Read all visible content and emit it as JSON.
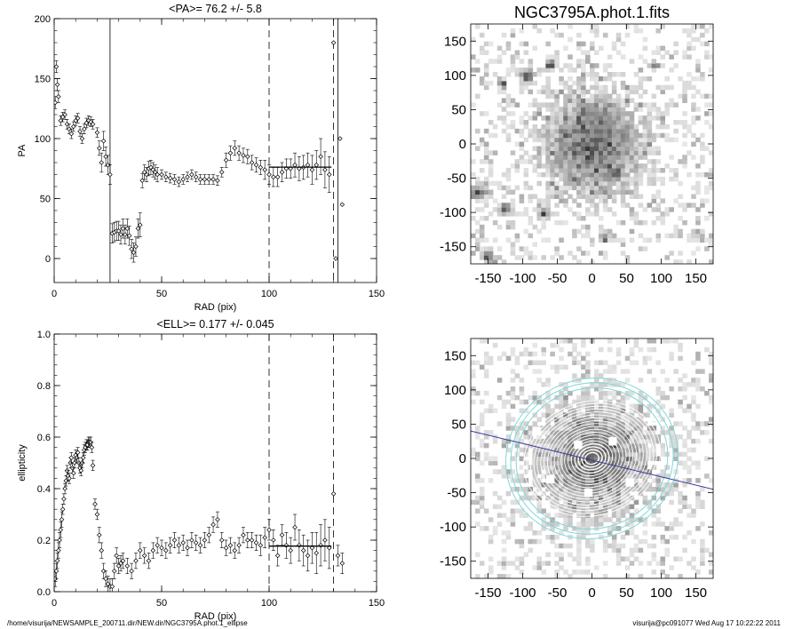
{
  "footer": {
    "left": "/home/visurija/NEWSAMPLE_200711.dir/NEW.dir/NGC3795A.phot.1_ellipse",
    "right": "visurija@pc091077  Wed Aug 17 10:22:22 2011"
  },
  "chart_data": [
    {
      "type": "scatter",
      "title": "<PA>=  76.2 +/-   5.8",
      "xlabel": "RAD (pix)",
      "ylabel": "PA",
      "xlim": [
        0,
        150
      ],
      "ylim": [
        -20,
        200
      ],
      "xticks": [
        0,
        50,
        100,
        150
      ],
      "yticks": [
        0,
        50,
        100,
        150,
        200
      ],
      "vlines_solid": [
        26,
        132
      ],
      "vlines_dashed": [
        100,
        130
      ],
      "mean_line": {
        "x": [
          100,
          129
        ],
        "y": 76.2
      },
      "series": [
        {
          "x": [
            0.5,
            1,
            1.5,
            2,
            3,
            4,
            5,
            6,
            7,
            8,
            9,
            10,
            11,
            12,
            13,
            14,
            15,
            16,
            17,
            18,
            20,
            21,
            22,
            23,
            24,
            25,
            26,
            27,
            28,
            29,
            30,
            31,
            32,
            33,
            34,
            35,
            36,
            37,
            38,
            39,
            40,
            41,
            42,
            43,
            44,
            45,
            46,
            47,
            48,
            50,
            52,
            54,
            56,
            58,
            60,
            62,
            64,
            66,
            68,
            70,
            72,
            74,
            76,
            78,
            80,
            82,
            84,
            86,
            88,
            90,
            92,
            94,
            96,
            98,
            100,
            102,
            104,
            106,
            108,
            110,
            112,
            114,
            116,
            118,
            120,
            122,
            124,
            126,
            128,
            130,
            131,
            133,
            134
          ],
          "y": [
            130,
            160,
            145,
            135,
            115,
            118,
            120,
            112,
            108,
            104,
            110,
            115,
            117,
            106,
            100,
            108,
            113,
            115,
            114,
            112,
            105,
            92,
            80,
            98,
            85,
            78,
            70,
            21,
            22,
            23,
            23,
            20,
            25,
            20,
            25,
            19,
            8,
            5,
            10,
            25,
            28,
            65,
            72,
            70,
            75,
            76,
            74,
            72,
            70,
            70,
            68,
            67,
            66,
            64,
            66,
            68,
            70,
            68,
            66,
            66,
            66,
            66,
            65,
            72,
            82,
            88,
            92,
            88,
            86,
            85,
            80,
            78,
            76,
            74,
            70,
            68,
            68,
            72,
            75,
            75,
            78,
            75,
            76,
            78,
            74,
            78,
            85,
            74,
            70,
            180,
            0,
            100,
            45
          ],
          "err": [
            5,
            5,
            5,
            5,
            4,
            4,
            4,
            4,
            4,
            4,
            4,
            4,
            4,
            4,
            4,
            4,
            4,
            4,
            4,
            4,
            4,
            6,
            8,
            8,
            8,
            8,
            8,
            8,
            8,
            8,
            8,
            8,
            8,
            8,
            8,
            8,
            8,
            8,
            8,
            8,
            10,
            6,
            6,
            6,
            6,
            6,
            6,
            6,
            6,
            4,
            4,
            4,
            4,
            4,
            4,
            4,
            4,
            4,
            4,
            4,
            4,
            4,
            4,
            4,
            6,
            6,
            6,
            6,
            6,
            6,
            6,
            6,
            6,
            8,
            8,
            8,
            8,
            8,
            8,
            8,
            10,
            10,
            10,
            10,
            12,
            12,
            15,
            15,
            15,
            0,
            0,
            0,
            0
          ]
        }
      ]
    },
    {
      "type": "scatter",
      "title": "<ELL>= 0.177 +/-  0.045",
      "xlabel": "RAD (pix)",
      "ylabel": "ellipticity",
      "xlim": [
        0,
        150
      ],
      "ylim": [
        0,
        1
      ],
      "xticks": [
        0,
        50,
        100,
        150
      ],
      "yticks": [
        0.0,
        0.2,
        0.4,
        0.6,
        0.8,
        1.0
      ],
      "vlines_dashed": [
        100,
        130
      ],
      "mean_line": {
        "x": [
          100,
          129
        ],
        "y": 0.177
      },
      "series": [
        {
          "x": [
            0.5,
            1,
            1.5,
            2,
            2.5,
            3,
            3.5,
            4,
            4.5,
            5,
            5.5,
            6,
            6.5,
            7,
            7.5,
            8,
            8.5,
            9,
            9.5,
            10,
            10.5,
            11,
            11.5,
            12,
            12.5,
            13,
            13.5,
            14,
            14.5,
            15,
            15.5,
            16,
            16.5,
            17,
            17.5,
            18,
            19,
            20,
            21,
            22,
            23,
            24,
            25,
            26,
            27,
            28,
            29,
            30,
            31,
            32,
            34,
            36,
            38,
            40,
            42,
            44,
            46,
            48,
            50,
            52,
            54,
            56,
            58,
            60,
            62,
            64,
            66,
            68,
            70,
            72,
            74,
            76,
            78,
            80,
            82,
            84,
            86,
            88,
            90,
            92,
            94,
            96,
            98,
            100,
            102,
            104,
            106,
            108,
            110,
            112,
            114,
            116,
            118,
            120,
            122,
            124,
            126,
            128,
            130,
            132,
            134
          ],
          "y": [
            0.05,
            0.08,
            0.12,
            0.16,
            0.2,
            0.24,
            0.28,
            0.32,
            0.36,
            0.4,
            0.43,
            0.47,
            0.45,
            0.44,
            0.5,
            0.52,
            0.48,
            0.46,
            0.5,
            0.53,
            0.52,
            0.54,
            0.5,
            0.48,
            0.47,
            0.5,
            0.52,
            0.55,
            0.56,
            0.57,
            0.57,
            0.58,
            0.58,
            0.58,
            0.56,
            0.49,
            0.34,
            0.3,
            0.22,
            0.16,
            0.08,
            0.05,
            0.03,
            0.02,
            0.02,
            0.08,
            0.14,
            0.1,
            0.11,
            0.12,
            0.1,
            0.08,
            0.12,
            0.16,
            0.14,
            0.12,
            0.16,
            0.18,
            0.17,
            0.16,
            0.18,
            0.2,
            0.18,
            0.19,
            0.17,
            0.2,
            0.19,
            0.18,
            0.2,
            0.22,
            0.26,
            0.28,
            0.2,
            0.17,
            0.18,
            0.16,
            0.18,
            0.22,
            0.2,
            0.2,
            0.19,
            0.18,
            0.21,
            0.24,
            0.2,
            0.14,
            0.22,
            0.18,
            0.16,
            0.25,
            0.18,
            0.16,
            0.14,
            0.17,
            0.15,
            0.18,
            0.2,
            0.17,
            0.38,
            0.14,
            0.11
          ],
          "err": [
            0.03,
            0.03,
            0.03,
            0.03,
            0.03,
            0.03,
            0.03,
            0.02,
            0.02,
            0.02,
            0.02,
            0.02,
            0.02,
            0.02,
            0.02,
            0.02,
            0.02,
            0.02,
            0.02,
            0.02,
            0.02,
            0.02,
            0.02,
            0.02,
            0.02,
            0.02,
            0.02,
            0.02,
            0.02,
            0.02,
            0.02,
            0.02,
            0.02,
            0.02,
            0.02,
            0.02,
            0.02,
            0.02,
            0.03,
            0.03,
            0.03,
            0.03,
            0.03,
            0.03,
            0.03,
            0.03,
            0.03,
            0.03,
            0.03,
            0.03,
            0.03,
            0.03,
            0.03,
            0.03,
            0.03,
            0.03,
            0.03,
            0.03,
            0.03,
            0.03,
            0.03,
            0.03,
            0.03,
            0.03,
            0.03,
            0.03,
            0.03,
            0.03,
            0.03,
            0.03,
            0.03,
            0.03,
            0.03,
            0.03,
            0.03,
            0.03,
            0.03,
            0.03,
            0.03,
            0.03,
            0.03,
            0.04,
            0.04,
            0.04,
            0.04,
            0.04,
            0.04,
            0.05,
            0.05,
            0.05,
            0.06,
            0.06,
            0.06,
            0.06,
            0.08,
            0.08,
            0.08,
            0.08,
            0,
            0.04,
            0.04
          ]
        }
      ]
    },
    {
      "type": "heatmap",
      "title": "NGC3795A.phot.1.fits",
      "xlim": [
        -175,
        175
      ],
      "ylim": [
        -175,
        175
      ],
      "xticks": [
        -150,
        -100,
        -50,
        0,
        50,
        100,
        150
      ],
      "yticks": [
        -150,
        -100,
        -50,
        0,
        50,
        100,
        150
      ],
      "sources": [
        {
          "x": 2,
          "y": 0,
          "r": 80,
          "peak": 0.7
        },
        {
          "x": -95,
          "y": 100,
          "r": 10,
          "peak": 0.9
        },
        {
          "x": -60,
          "y": 115,
          "r": 8,
          "peak": 0.9
        },
        {
          "x": -130,
          "y": 90,
          "r": 7,
          "peak": 0.8
        },
        {
          "x": -165,
          "y": -70,
          "r": 12,
          "peak": 0.8
        },
        {
          "x": -125,
          "y": -95,
          "r": 9,
          "peak": 0.8
        },
        {
          "x": -70,
          "y": -100,
          "r": 8,
          "peak": 0.9
        },
        {
          "x": -150,
          "y": -165,
          "r": 9,
          "peak": 0.8
        },
        {
          "x": 20,
          "y": -135,
          "r": 8,
          "peak": 0.7
        },
        {
          "x": 90,
          "y": 115,
          "r": 6,
          "peak": 0.7
        },
        {
          "x": 35,
          "y": -45,
          "r": 6,
          "peak": 0.7
        },
        {
          "x": 150,
          "y": -130,
          "r": 6,
          "peak": 0.6
        }
      ]
    },
    {
      "type": "heatmap",
      "title": "",
      "xlim": [
        -175,
        175
      ],
      "ylim": [
        -175,
        175
      ],
      "xticks": [
        -150,
        -100,
        -50,
        0,
        50,
        100,
        150
      ],
      "yticks": [
        -150,
        -100,
        -50,
        0,
        50,
        100,
        150
      ],
      "ellipse_pa_deg": -16,
      "ellipse_ell": 0.177,
      "ellipses_white_max_a": 100,
      "ellipses_cyan_a": [
        110,
        118,
        125
      ],
      "major_axis_line": {
        "x": [
          -175,
          175
        ],
        "y": [
          40,
          -45
        ]
      },
      "contour_color": "#ffffff",
      "outer_contour_color": "#7fd7d7",
      "axis_line_color": "#3a3aa0"
    }
  ]
}
